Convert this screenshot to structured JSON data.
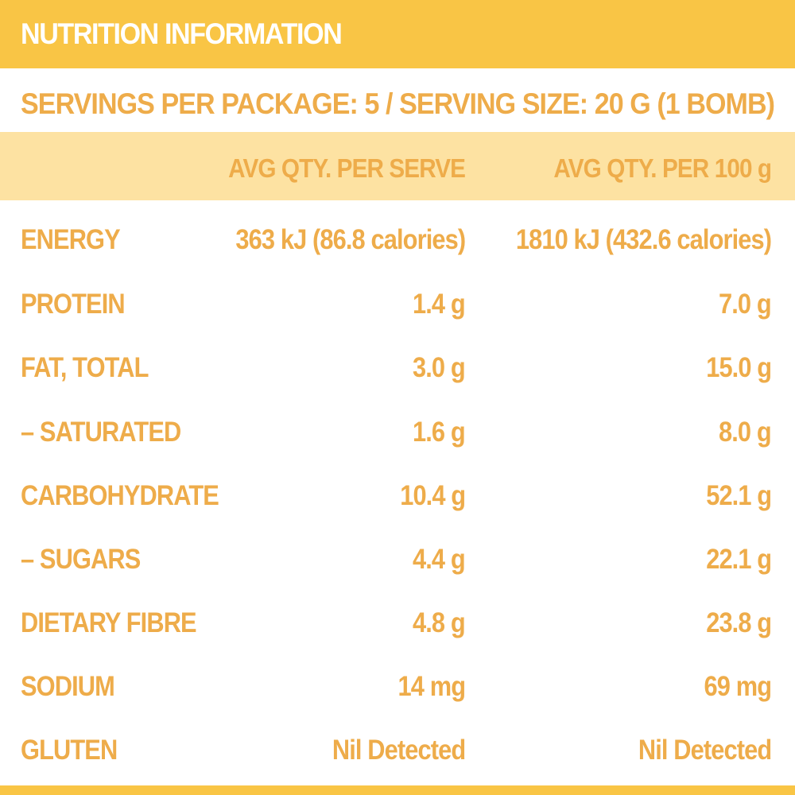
{
  "header": {
    "title": "NUTRITION INFORMATION"
  },
  "servings": "SERVINGS PER PACKAGE: 5 / SERVING SIZE: 20 G (1 BOMB)",
  "columns": {
    "per_serve": "AVG QTY. PER SERVE",
    "per_100g": "AVG QTY. PER 100 g"
  },
  "rows": [
    {
      "label": "ENERGY",
      "per_serve": "363 kJ (86.8 calories)",
      "per_100g": "1810 kJ (432.6 calories)"
    },
    {
      "label": "PROTEIN",
      "per_serve": "1.4 g",
      "per_100g": "7.0 g"
    },
    {
      "label": "FAT, TOTAL",
      "per_serve": "3.0 g",
      "per_100g": "15.0 g"
    },
    {
      "label": "– SATURATED",
      "per_serve": "1.6 g",
      "per_100g": "8.0 g"
    },
    {
      "label": "CARBOHYDRATE",
      "per_serve": "10.4 g",
      "per_100g": "52.1 g"
    },
    {
      "label": "– SUGARS",
      "per_serve": "4.4 g",
      "per_100g": "22.1 g"
    },
    {
      "label": "DIETARY FIBRE",
      "per_serve": "4.8 g",
      "per_100g": "23.8 g"
    },
    {
      "label": "SODIUM",
      "per_serve": "14 mg",
      "per_100g": "69 mg"
    },
    {
      "label": "GLUTEN",
      "per_serve": "Nil Detected",
      "per_100g": "Nil Detected"
    }
  ],
  "colors": {
    "accent": "#f9c545",
    "accent_light": "#fde2a2",
    "text": "#eeac4a"
  }
}
